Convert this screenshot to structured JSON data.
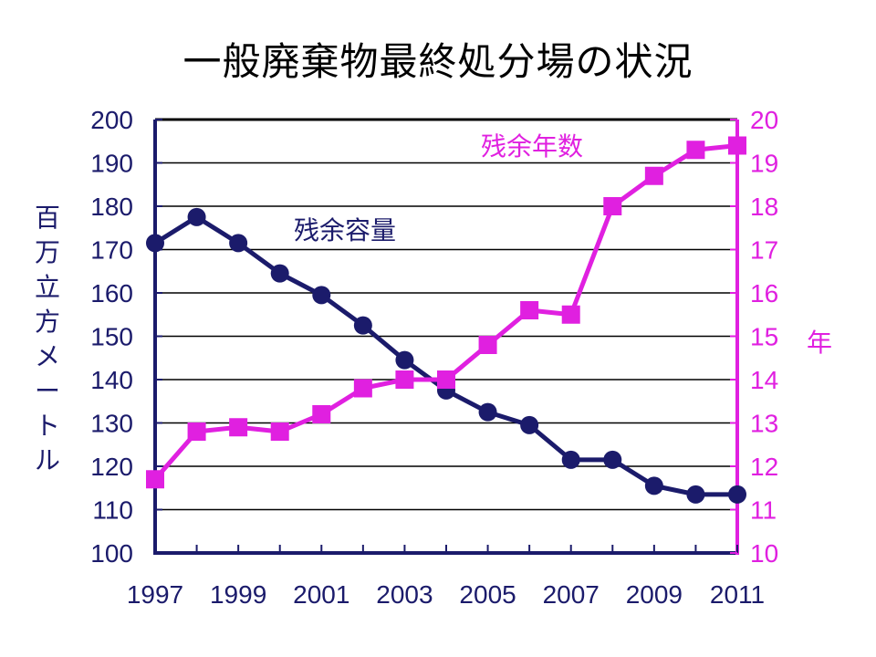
{
  "page": {
    "title": "一般廃棄物最終処分場の状況"
  },
  "colors": {
    "capacity": "#1b1b6b",
    "years": "#e020e0",
    "grid": "#000000",
    "frame": "#000000"
  },
  "chart_data": {
    "type": "line",
    "x": [
      1997,
      1998,
      1999,
      2000,
      2001,
      2002,
      2003,
      2004,
      2005,
      2006,
      2007,
      2008,
      2009,
      2010,
      2011
    ],
    "x_tick_labels": [
      "1997",
      "1999",
      "2001",
      "2003",
      "2005",
      "2007",
      "2009",
      "2011"
    ],
    "y_left": {
      "label": "百万立方メートル",
      "lim": [
        100,
        200
      ],
      "ticks": [
        100,
        110,
        120,
        130,
        140,
        150,
        160,
        170,
        180,
        190,
        200
      ]
    },
    "y_right": {
      "label": "年",
      "lim": [
        10,
        20
      ],
      "ticks": [
        10,
        11,
        12,
        13,
        14,
        15,
        16,
        17,
        18,
        19,
        20
      ]
    },
    "grid": true,
    "series": [
      {
        "name": "残余容量",
        "axis": "left",
        "marker": "circle",
        "values": [
          171.5,
          177.5,
          171.5,
          164.5,
          159.5,
          152.5,
          144.5,
          137.5,
          132.5,
          129.5,
          121.5,
          121.5,
          115.5,
          113.5,
          113.5
        ]
      },
      {
        "name": "残余年数",
        "axis": "right",
        "marker": "square",
        "values": [
          11.7,
          12.8,
          12.9,
          12.8,
          13.2,
          13.8,
          14.0,
          14.0,
          14.8,
          15.6,
          15.5,
          18.0,
          18.7,
          19.3,
          19.4
        ]
      }
    ]
  }
}
